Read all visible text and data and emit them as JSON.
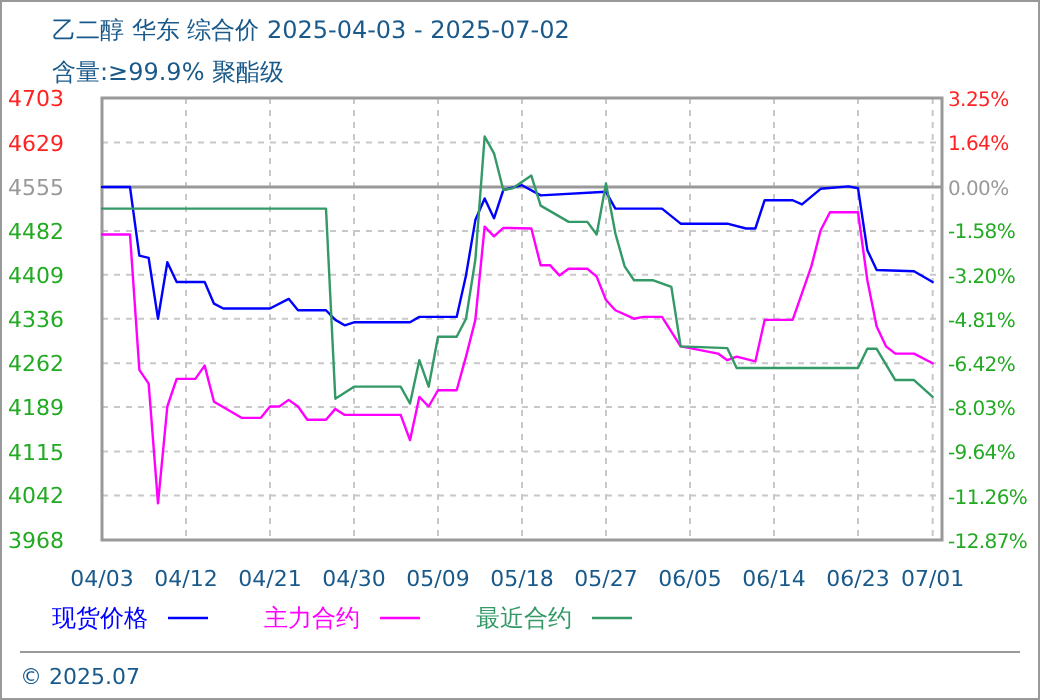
{
  "chart_data": {
    "type": "line",
    "title": "乙二醇 华东 综合价 2025-04-03 - 2025-07-02",
    "subtitle": "含量:≥99.9% 聚酯级",
    "annotations": [
      "© 2025.07"
    ],
    "xlim": [
      "2025-04-03",
      "2025-07-02"
    ],
    "xticks": [
      {
        "value": "2025-04-03",
        "label": "04/03"
      },
      {
        "value": "2025-04-12",
        "label": "04/12"
      },
      {
        "value": "2025-04-21",
        "label": "04/21"
      },
      {
        "value": "2025-04-30",
        "label": "04/30"
      },
      {
        "value": "2025-05-09",
        "label": "05/09"
      },
      {
        "value": "2025-05-18",
        "label": "05/18"
      },
      {
        "value": "2025-05-27",
        "label": "05/27"
      },
      {
        "value": "2025-06-05",
        "label": "06/05"
      },
      {
        "value": "2025-06-14",
        "label": "06/14"
      },
      {
        "value": "2025-06-23",
        "label": "06/23"
      },
      {
        "value": "2025-07-01",
        "label": "07/01"
      }
    ],
    "ylim": [
      3968,
      4703
    ],
    "yticks": [
      3968,
      4042,
      4115,
      4189,
      4262,
      4336,
      4409,
      4482,
      4555,
      4629,
      4703
    ],
    "y2lim": [
      -12.87,
      3.25
    ],
    "y2ticks": [
      {
        "value": -12.87,
        "label": "-12.87%"
      },
      {
        "value": -11.26,
        "label": "-11.26%"
      },
      {
        "value": -9.64,
        "label": "-9.64%"
      },
      {
        "value": -8.03,
        "label": "-8.03%"
      },
      {
        "value": -6.42,
        "label": "-6.42%"
      },
      {
        "value": -4.81,
        "label": "-4.81%"
      },
      {
        "value": -3.2,
        "label": "-3.20%"
      },
      {
        "value": -1.58,
        "label": "-1.58%"
      },
      {
        "value": 0,
        "label": "0.00%"
      },
      {
        "value": 1.64,
        "label": "1.64%"
      },
      {
        "value": 3.25,
        "label": "3.25%"
      }
    ],
    "ref_lines": [
      {
        "axis": "y",
        "value": 4555,
        "color": "#999999"
      }
    ],
    "grid": true,
    "legend": "bottom",
    "line_style": "solid",
    "series": [
      {
        "name": "现货价格",
        "color": "#0000ff",
        "x": [
          "2025-04-03",
          "2025-04-06",
          "2025-04-07",
          "2025-04-08",
          "2025-04-09",
          "2025-04-10",
          "2025-04-11",
          "2025-04-14",
          "2025-04-15",
          "2025-04-16",
          "2025-04-21",
          "2025-04-23",
          "2025-04-24",
          "2025-04-27",
          "2025-04-28",
          "2025-04-29",
          "2025-04-30",
          "2025-05-06",
          "2025-05-07",
          "2025-05-11",
          "2025-05-12",
          "2025-05-13",
          "2025-05-14",
          "2025-05-15",
          "2025-05-16",
          "2025-05-18",
          "2025-05-20",
          "2025-05-27",
          "2025-05-28",
          "2025-06-02",
          "2025-06-04",
          "2025-06-09",
          "2025-06-11",
          "2025-06-12",
          "2025-06-13",
          "2025-06-16",
          "2025-06-17",
          "2025-06-19",
          "2025-06-22",
          "2025-06-23",
          "2025-06-24",
          "2025-06-25",
          "2025-06-29",
          "2025-07-01"
        ],
        "values": [
          4555,
          4555,
          4441,
          4437,
          4336,
          4430,
          4397,
          4397,
          4361,
          4353,
          4353,
          4369,
          4350,
          4350,
          4334,
          4325,
          4330,
          4330,
          4339,
          4339,
          4408,
          4500,
          4536,
          4503,
          4550,
          4558,
          4541,
          4547,
          4519,
          4519,
          4494,
          4494,
          4486,
          4486,
          4533,
          4533,
          4526,
          4552,
          4556,
          4553,
          4450,
          4417,
          4415,
          4397
        ]
      },
      {
        "name": "主力合约",
        "color": "#ff00ff",
        "x": [
          "2025-04-03",
          "2025-04-06",
          "2025-04-07",
          "2025-04-08",
          "2025-04-09",
          "2025-04-10",
          "2025-04-11",
          "2025-04-13",
          "2025-04-14",
          "2025-04-15",
          "2025-04-18",
          "2025-04-20",
          "2025-04-21",
          "2025-04-22",
          "2025-04-23",
          "2025-04-24",
          "2025-04-25",
          "2025-04-27",
          "2025-04-28",
          "2025-04-29",
          "2025-05-05",
          "2025-05-06",
          "2025-05-07",
          "2025-05-08",
          "2025-05-09",
          "2025-05-11",
          "2025-05-12",
          "2025-05-13",
          "2025-05-14",
          "2025-05-15",
          "2025-05-16",
          "2025-05-19",
          "2025-05-20",
          "2025-05-21",
          "2025-05-22",
          "2025-05-23",
          "2025-05-25",
          "2025-05-26",
          "2025-05-27",
          "2025-05-28",
          "2025-05-30",
          "2025-05-31",
          "2025-06-02",
          "2025-06-04",
          "2025-06-05",
          "2025-06-08",
          "2025-06-09",
          "2025-06-10",
          "2025-06-12",
          "2025-06-13",
          "2025-06-16",
          "2025-06-18",
          "2025-06-19",
          "2025-06-20",
          "2025-06-23",
          "2025-06-24",
          "2025-06-25",
          "2025-06-26",
          "2025-06-27",
          "2025-06-29",
          "2025-07-01"
        ],
        "values": [
          4476,
          4476,
          4251,
          4228,
          4029,
          4190,
          4236,
          4236,
          4258,
          4198,
          4171,
          4171,
          4190,
          4190,
          4201,
          4190,
          4168,
          4168,
          4186,
          4176,
          4176,
          4134,
          4206,
          4190,
          4217,
          4217,
          4273,
          4334,
          4489,
          4473,
          4487,
          4486,
          4425,
          4425,
          4408,
          4419,
          4419,
          4406,
          4367,
          4350,
          4336,
          4339,
          4339,
          4290,
          4287,
          4278,
          4267,
          4273,
          4265,
          4334,
          4334,
          4423,
          4483,
          4513,
          4513,
          4400,
          4323,
          4290,
          4278,
          4278,
          4262
        ]
      },
      {
        "name": "最近合约",
        "color": "#339966",
        "x": [
          "2025-04-03",
          "2025-04-27",
          "2025-04-28",
          "2025-04-30",
          "2025-05-05",
          "2025-05-06",
          "2025-05-07",
          "2025-05-08",
          "2025-05-09",
          "2025-05-11",
          "2025-05-12",
          "2025-05-13",
          "2025-05-14",
          "2025-05-15",
          "2025-05-16",
          "2025-05-17",
          "2025-05-19",
          "2025-05-20",
          "2025-05-23",
          "2025-05-25",
          "2025-05-26",
          "2025-05-27",
          "2025-05-28",
          "2025-05-29",
          "2025-05-30",
          "2025-06-01",
          "2025-06-03",
          "2025-06-04",
          "2025-06-09",
          "2025-06-10",
          "2025-06-23",
          "2025-06-24",
          "2025-06-25",
          "2025-06-27",
          "2025-06-29",
          "2025-07-01"
        ],
        "values": [
          4519,
          4519,
          4203,
          4223,
          4223,
          4195,
          4267,
          4223,
          4306,
          4306,
          4336,
          4434,
          4639,
          4611,
          4550,
          4553,
          4574,
          4524,
          4497,
          4497,
          4476,
          4561,
          4478,
          4423,
          4400,
          4400,
          4389,
          4290,
          4287,
          4254,
          4254,
          4286,
          4286,
          4234,
          4234,
          4206
        ]
      }
    ]
  }
}
